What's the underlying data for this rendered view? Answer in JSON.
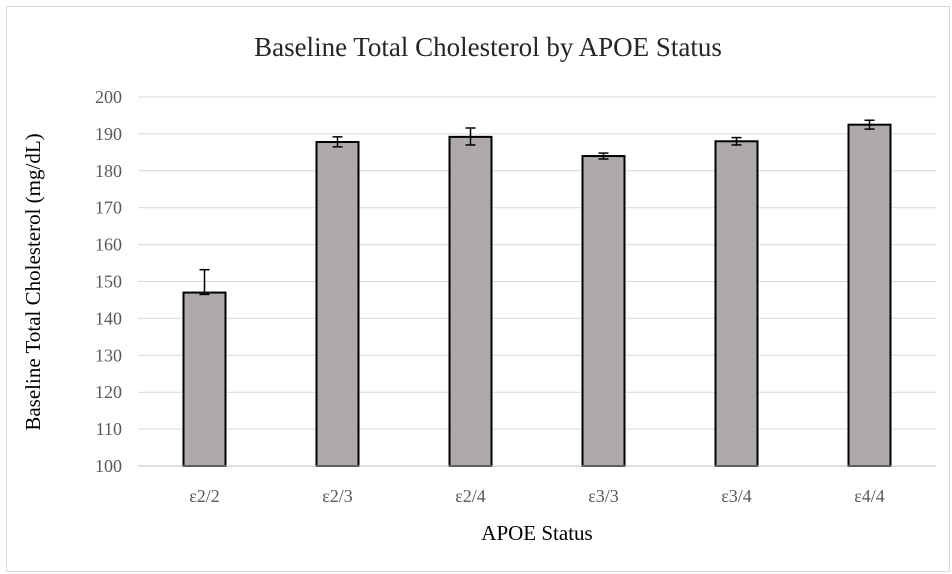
{
  "chart_data": {
    "type": "bar",
    "title": "Baseline Total Cholesterol by APOE Status",
    "xlabel": "APOE Status",
    "ylabel": "Baseline Total Cholesterol (mg/dL)",
    "ylim": [
      100,
      200
    ],
    "yticks": [
      100,
      110,
      120,
      130,
      140,
      150,
      160,
      170,
      180,
      190,
      200
    ],
    "categories": [
      "ε2/2",
      "ε2/3",
      "ε2/4",
      "ε3/3",
      "ε3/4",
      "ε4/4"
    ],
    "values": [
      147,
      187.8,
      189.2,
      184,
      188,
      192.5
    ],
    "error_lower": [
      146.5,
      186.5,
      187,
      183.2,
      187,
      191.3
    ],
    "error_upper": [
      153.2,
      189.2,
      191.6,
      184.8,
      189,
      193.7
    ],
    "grid": true,
    "legend": "none",
    "colors": {
      "bar_fill": "#aeaaaa",
      "bar_edge": "#000000",
      "grid": "#d9d9d9"
    }
  }
}
